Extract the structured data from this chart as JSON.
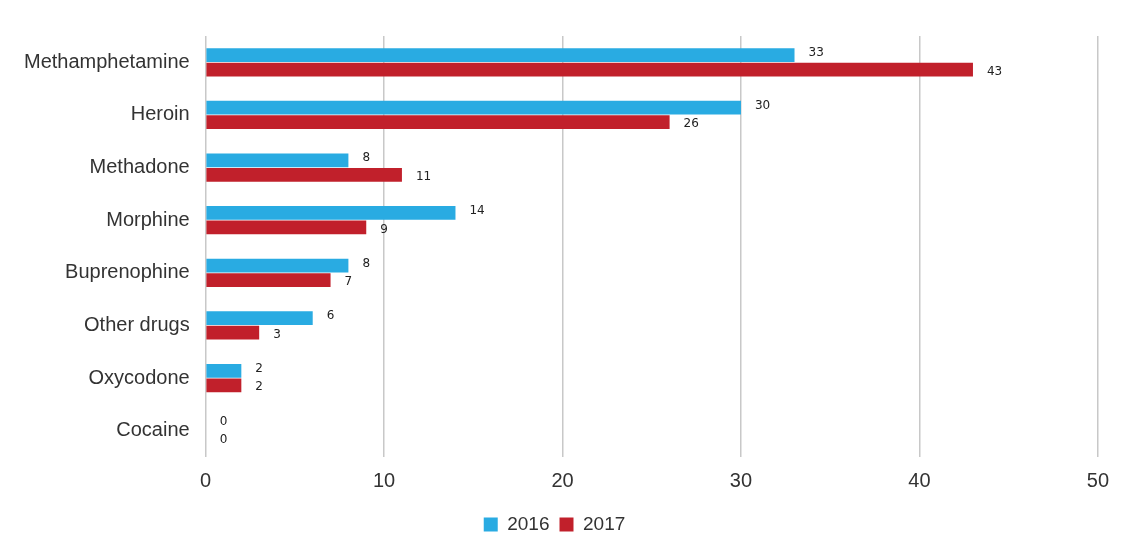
{
  "chart_data": {
    "type": "bar",
    "orientation": "horizontal",
    "categories": [
      "Methamphetamine",
      "Heroin",
      "Methadone",
      "Morphine",
      "Buprenophine",
      "Other drugs",
      "Oxycodone",
      "Cocaine"
    ],
    "series": [
      {
        "name": "2016",
        "color": "#29abe2",
        "values": [
          33,
          30,
          8,
          14,
          8,
          6,
          2,
          0
        ]
      },
      {
        "name": "2017",
        "color": "#c1202b",
        "values": [
          43,
          26,
          11,
          9,
          7,
          3,
          2,
          0
        ]
      }
    ],
    "xlim": [
      0,
      50
    ],
    "xticks": [
      0,
      10,
      20,
      30,
      40,
      50
    ],
    "grid": "x",
    "legend": "bottom",
    "data_labels": true
  }
}
